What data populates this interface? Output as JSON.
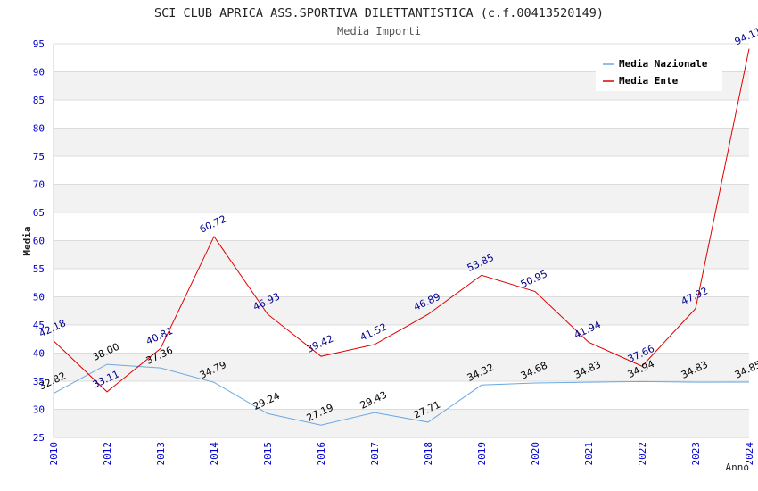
{
  "chart_data": {
    "type": "line",
    "title": "SCI CLUB APRICA ASS.SPORTIVA DILETTANTISTICA (c.f.00413520149)",
    "subtitle": "Media Importi",
    "xlabel": "Anno",
    "ylabel": "Media",
    "categories": [
      "2010",
      "2012",
      "2013",
      "2014",
      "2015",
      "2016",
      "2017",
      "2018",
      "2019",
      "2020",
      "2021",
      "2022",
      "2023",
      "2024"
    ],
    "ylim": [
      25,
      95
    ],
    "yticks": [
      "25",
      "30",
      "35",
      "40",
      "45",
      "50",
      "55",
      "60",
      "65",
      "70",
      "75",
      "80",
      "85",
      "90",
      "95"
    ],
    "grid": "horizontal alternating bands",
    "legend_position": "top-right",
    "series": [
      {
        "name": "Media Nazionale",
        "color": "#6aa8e0",
        "label_color": "#000000",
        "values": [
          32.82,
          38.0,
          37.36,
          34.79,
          29.24,
          27.19,
          29.43,
          27.71,
          34.32,
          34.68,
          34.83,
          34.94,
          34.83,
          34.85
        ],
        "labels": [
          "32.82",
          "38.00",
          "37.36",
          "34.79",
          "29.24",
          "27.19",
          "29.43",
          "27.71",
          "34.32",
          "34.68",
          "34.83",
          "34.94",
          "34.83",
          "34.85"
        ]
      },
      {
        "name": "Media Ente",
        "color": "#e00000",
        "label_color": "#00008b",
        "values": [
          42.18,
          33.11,
          40.81,
          60.72,
          46.93,
          39.42,
          41.52,
          46.89,
          53.85,
          50.95,
          41.94,
          37.66,
          47.92,
          94.11
        ],
        "labels": [
          "42.18",
          "33.11",
          "40.81",
          "60.72",
          "46.93",
          "39.42",
          "41.52",
          "46.89",
          "53.85",
          "50.95",
          "41.94",
          "37.66",
          "47.92",
          "94.11"
        ]
      }
    ]
  },
  "colors": {
    "axis_tick_text": "#0000cc",
    "band": "#f2f2f2",
    "gridline": "#dcdcdc"
  }
}
